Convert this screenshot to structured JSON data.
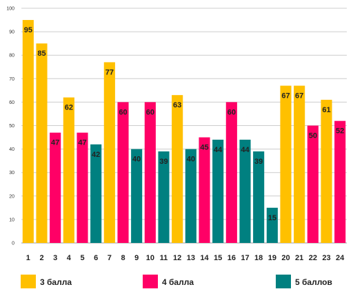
{
  "chart_data": {
    "type": "bar",
    "title": "",
    "xlabel": "",
    "ylabel": "",
    "ylim": [
      0,
      100
    ],
    "yticks": [
      0,
      10,
      20,
      30,
      40,
      50,
      60,
      70,
      80,
      90,
      100
    ],
    "grid": "horizontal",
    "legend_position": "bottom",
    "categories": [
      "1",
      "2",
      "3",
      "4",
      "5",
      "6",
      "7",
      "8",
      "9",
      "10",
      "11",
      "12",
      "13",
      "14",
      "15",
      "16",
      "17",
      "18",
      "19",
      "20",
      "21",
      "22",
      "23",
      "24"
    ],
    "values": [
      95,
      85,
      47,
      62,
      47,
      42,
      77,
      60,
      40,
      60,
      39,
      63,
      40,
      45,
      44,
      60,
      44,
      39,
      15,
      67,
      67,
      50,
      61,
      52
    ],
    "bar_groups": [
      "3 балла",
      "3 балла",
      "4 балла",
      "3 балла",
      "4 балла",
      "5 баллов",
      "3 балла",
      "4 балла",
      "5 баллов",
      "4 балла",
      "5 баллов",
      "3 балла",
      "5 баллов",
      "4 балла",
      "5 баллов",
      "4 балла",
      "5 баллов",
      "5 баллов",
      "5 баллов",
      "3 балла",
      "3 балла",
      "4 балла",
      "3 балла",
      "4 балла"
    ],
    "legend": [
      {
        "name": "3 балла",
        "color": "#FFC000"
      },
      {
        "name": "4 балла",
        "color": "#FF0066"
      },
      {
        "name": "5 баллов",
        "color": "#008080"
      }
    ]
  }
}
